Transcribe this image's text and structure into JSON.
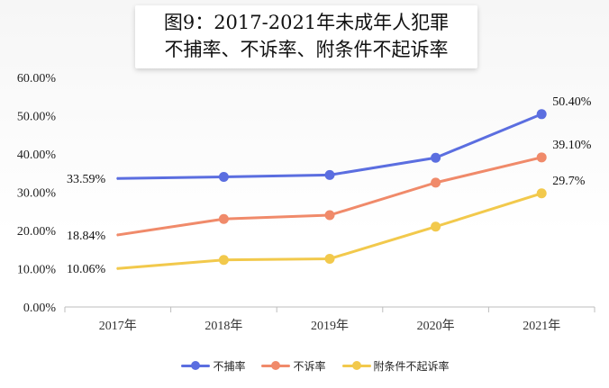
{
  "title": {
    "line1": "图9：2017-2021年未成年人犯罪",
    "line2": "不捕率、不诉率、附条件不起诉率"
  },
  "chart_data": {
    "type": "line",
    "categories": [
      "2017年",
      "2018年",
      "2019年",
      "2020年",
      "2021年"
    ],
    "ylim": [
      0,
      60
    ],
    "yticks": [
      "0.00%",
      "10.00%",
      "20.00%",
      "30.00%",
      "40.00%",
      "50.00%",
      "60.00%"
    ],
    "grid": false,
    "legend_position": "bottom",
    "series": [
      {
        "name": "不捕率",
        "color": "#5b6ee0",
        "values": [
          33.59,
          34.0,
          34.5,
          39.0,
          50.4
        ],
        "labels": {
          "0": "33.59%",
          "4": "50.40%"
        }
      },
      {
        "name": "不诉率",
        "color": "#f08a6a",
        "values": [
          18.84,
          23.0,
          24.0,
          32.5,
          39.1
        ],
        "labels": {
          "0": "18.84%",
          "4": "39.10%"
        }
      },
      {
        "name": "附条件不起诉率",
        "color": "#f2c94c",
        "values": [
          10.06,
          12.3,
          12.6,
          21.0,
          29.7
        ],
        "labels": {
          "0": "10.06%",
          "4": "29.7%"
        }
      }
    ]
  }
}
